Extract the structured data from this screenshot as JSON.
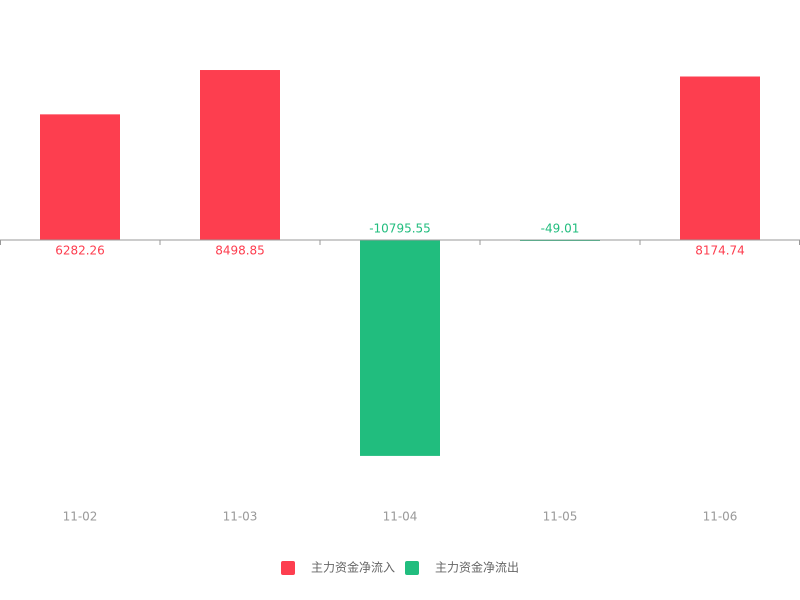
{
  "chart_data": {
    "type": "bar",
    "categories": [
      "11-02",
      "11-03",
      "11-04",
      "11-05",
      "11-06"
    ],
    "series": [
      {
        "name": "主力资金净流入",
        "color": "#fd3e4f",
        "values": [
          6282.26,
          8498.85,
          null,
          null,
          8174.74
        ]
      },
      {
        "name": "主力资金净流出",
        "color": "#21bd7e",
        "values": [
          null,
          null,
          -10795.55,
          -49.01,
          null
        ]
      }
    ],
    "ylim": [
      -13000,
      10000
    ]
  }
}
